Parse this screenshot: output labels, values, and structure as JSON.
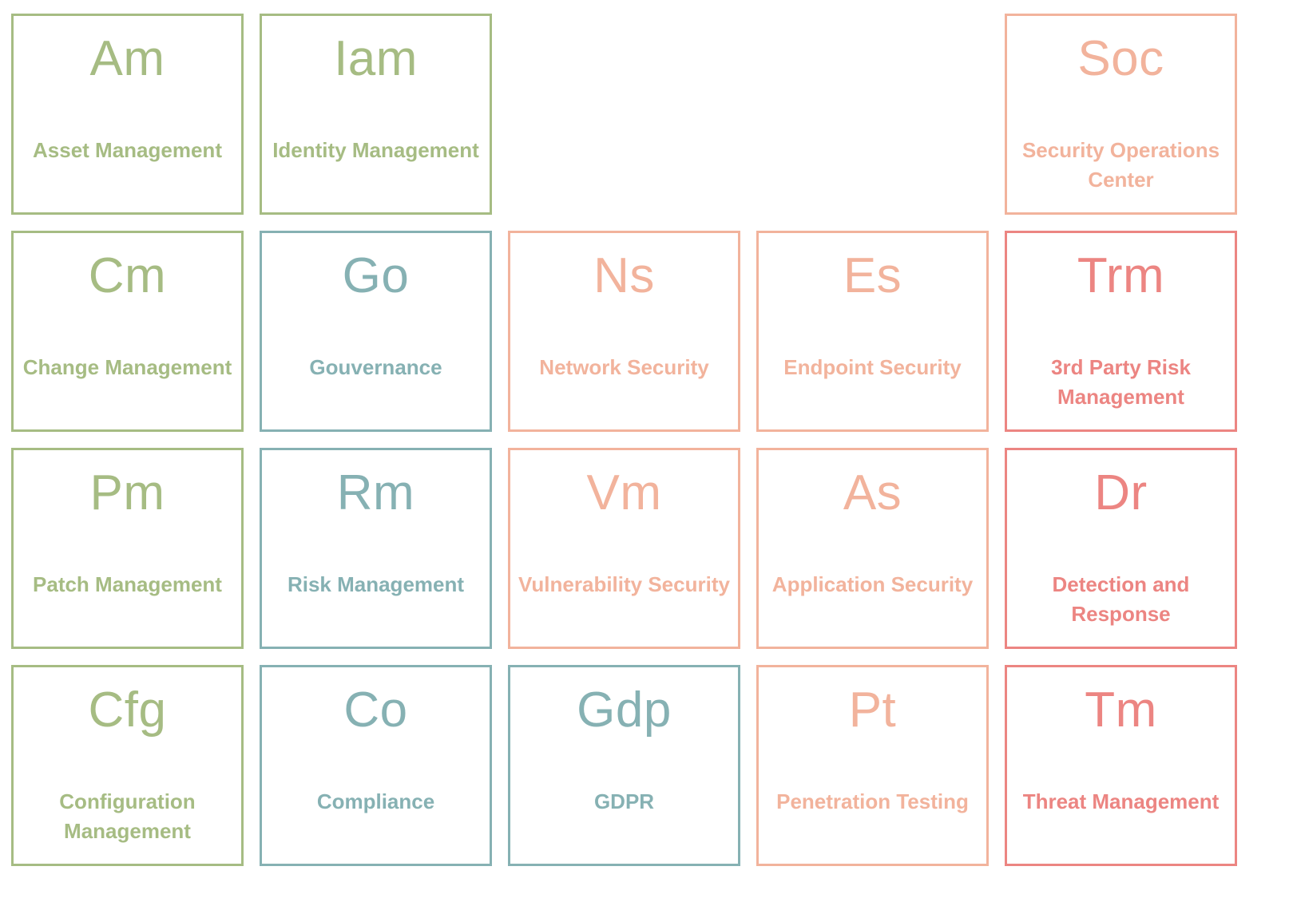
{
  "colors": {
    "green": "#a6bc83",
    "teal": "#86b1b3",
    "salmon": "#f2b39c",
    "red": "#ec8582"
  },
  "tiles": [
    {
      "symbol": "Am",
      "name": "Asset Management",
      "group": "green"
    },
    {
      "symbol": "Iam",
      "name": "Identity Management",
      "group": "green"
    },
    {
      "symbol": "Soc",
      "name": "Security Operations Center",
      "group": "salmon"
    },
    {
      "symbol": "Cm",
      "name": "Change Management",
      "group": "green"
    },
    {
      "symbol": "Go",
      "name": "Gouvernance",
      "group": "teal"
    },
    {
      "symbol": "Ns",
      "name": "Network Security",
      "group": "salmon"
    },
    {
      "symbol": "Es",
      "name": "Endpoint Security",
      "group": "salmon"
    },
    {
      "symbol": "Trm",
      "name": "3rd Party Risk Management",
      "group": "red"
    },
    {
      "symbol": "Pm",
      "name": "Patch Management",
      "group": "green"
    },
    {
      "symbol": "Rm",
      "name": "Risk Management",
      "group": "teal"
    },
    {
      "symbol": "Vm",
      "name": "Vulnerability Security",
      "group": "salmon"
    },
    {
      "symbol": "As",
      "name": "Application Security",
      "group": "salmon"
    },
    {
      "symbol": "Dr",
      "name": "Detection and Response",
      "group": "red"
    },
    {
      "symbol": "Cfg",
      "name": "Configuration Management",
      "group": "green"
    },
    {
      "symbol": "Co",
      "name": "Compliance",
      "group": "teal"
    },
    {
      "symbol": "Gdp",
      "name": "GDPR",
      "group": "teal"
    },
    {
      "symbol": "Pt",
      "name": "Penetration Testing",
      "group": "salmon"
    },
    {
      "symbol": "Tm",
      "name": "Threat Management",
      "group": "red"
    }
  ]
}
